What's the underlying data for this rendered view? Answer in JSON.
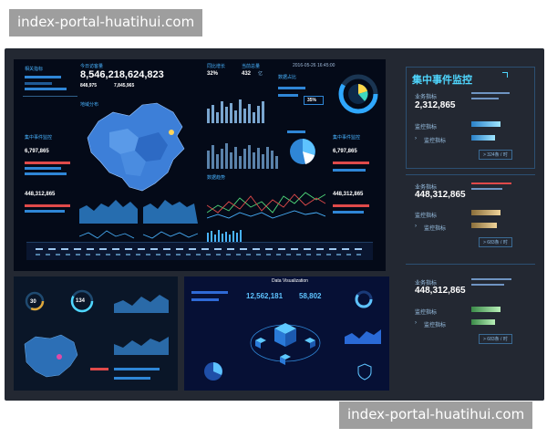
{
  "watermark": {
    "top": "index-portal-huatihui.com",
    "bottom": "index-portal-huatihui.com"
  },
  "main": {
    "headers": [
      "今日访客量",
      "同比增长",
      "当前总量"
    ],
    "big_number": "8,546,218,624,823",
    "sub_values": [
      "848,975",
      "7,845,965"
    ],
    "growth": "32%",
    "current": "432",
    "current_unit": "亿",
    "left_values": [
      "6,797,865",
      "448,312,865"
    ],
    "right_values": [
      "6,797,865",
      "448,312,865"
    ],
    "percent": "35%",
    "datetime": "2016-05-26  16:45:00"
  },
  "bottom_left": {
    "gauge_a": "30",
    "gauge_b": "134"
  },
  "bottom_center": {
    "title": "Data Visualization",
    "value_a": "12,562,181",
    "value_b": "58,802"
  },
  "right_panel": {
    "title": "集中事件监控",
    "sections": [
      {
        "label": "业务指标",
        "value": "2,312,865",
        "metric_a": "监控指标",
        "metric_b": "监控指标",
        "pill": "> 324条 / 时"
      },
      {
        "label": "业务指标",
        "value": "448,312,865",
        "metric_a": "监控指标",
        "metric_b": "监控指标",
        "pill": "> 683条 / 时"
      },
      {
        "label": "业务指标",
        "value": "448,312,865",
        "metric_a": "监控指标",
        "metric_b": "监控指标",
        "pill": "> 683条 / 时"
      }
    ]
  },
  "colors": {
    "frame": "#232832",
    "accent": "#4fd7ff",
    "red": "#e04a4a",
    "gold": "#c9a35a",
    "green": "#6bc47a"
  }
}
